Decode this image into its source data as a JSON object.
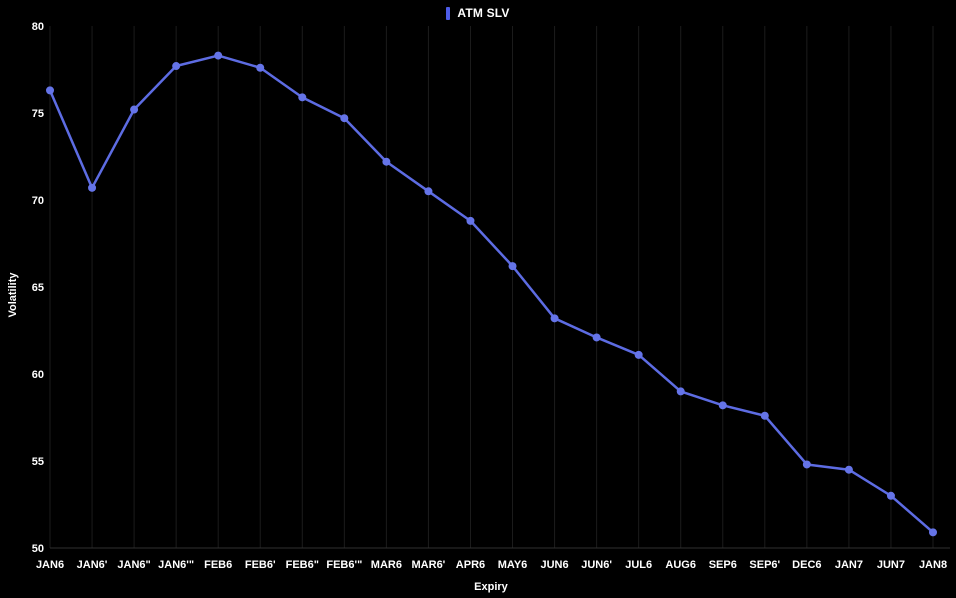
{
  "legend": {
    "label": "ATM SLV",
    "marker_color": "#4d5ce8"
  },
  "chart_data": {
    "type": "line",
    "title": "",
    "xlabel": "Expiry",
    "ylabel": "Volatility",
    "categories": [
      "JAN6",
      "JAN6'",
      "JAN6\"",
      "JAN6'\"",
      "FEB6",
      "FEB6'",
      "FEB6\"",
      "FEB6'\"",
      "MAR6",
      "MAR6'",
      "APR6",
      "MAY6",
      "JUN6",
      "JUN6'",
      "JUL6",
      "AUG6",
      "SEP6",
      "SEP6'",
      "DEC6",
      "JAN7",
      "JUN7",
      "JAN8"
    ],
    "series": [
      {
        "name": "ATM SLV",
        "color": "#5d6ce3",
        "marker_color": "#6574e8",
        "values": [
          76.3,
          70.7,
          75.2,
          77.7,
          78.3,
          77.6,
          75.9,
          74.7,
          72.2,
          70.5,
          68.8,
          66.2,
          63.2,
          62.1,
          61.1,
          59.0,
          58.2,
          57.6,
          54.8,
          54.5,
          53.0,
          50.9
        ]
      }
    ],
    "ylim": [
      50,
      80
    ],
    "y_ticks": [
      50,
      55,
      60,
      65,
      70,
      75,
      80
    ],
    "grid": "vertical-only",
    "legend_position": "top-center",
    "background_color": "#000000",
    "text_color": "#ffffff",
    "gridline_color": "#1c1c1c",
    "axisline_color": "#303030"
  }
}
